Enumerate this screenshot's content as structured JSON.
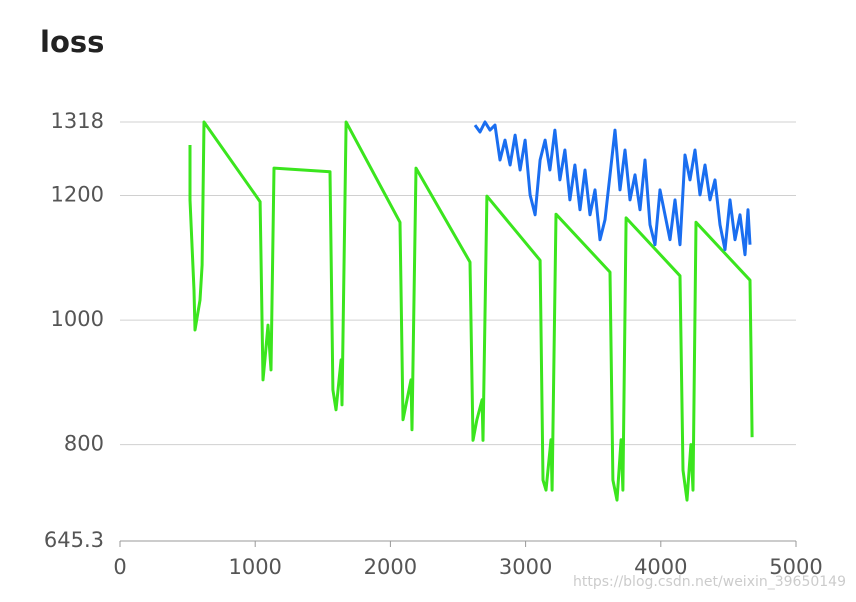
{
  "chart_data": {
    "type": "line",
    "title": "loss",
    "annotation": "https://blog.csdn.net/weixin_39650149",
    "xlim": [
      0,
      5000
    ],
    "xticks": [
      0,
      1000,
      2000,
      3000,
      4000,
      5000
    ],
    "ylim": [
      645.3,
      1318
    ],
    "yticks": [
      645.3,
      800,
      1000,
      1200,
      1318
    ],
    "grid": true,
    "series": [
      {
        "color": "#3be51e",
        "x": [
          518,
          518,
          547,
          555,
          592,
          607,
          621,
          1036,
          1058,
          1072,
          1095,
          1117,
          1139,
          1553,
          1575,
          1598,
          1635,
          1642,
          1672,
          2071,
          2093,
          2123,
          2152,
          2160,
          2189,
          2589,
          2611,
          2640,
          2678,
          2685,
          2714,
          3107,
          3129,
          3151,
          3188,
          3196,
          3225,
          3624,
          3646,
          3676,
          3706,
          3720,
          3743,
          4142,
          4164,
          4194,
          4223,
          4238,
          4260,
          4660,
          4667,
          4675
        ],
        "values": [
          1281,
          1193,
          1048,
          984,
          1032,
          1088,
          1318,
          1190,
          904,
          936,
          992,
          920,
          1244,
          1238,
          888,
          856,
          936,
          864,
          1318,
          1157,
          840,
          872,
          904,
          824,
          1244,
          1093,
          807,
          840,
          872,
          807,
          1199,
          1096,
          743,
          727,
          808,
          727,
          1170,
          1077,
          743,
          711,
          808,
          727,
          1164,
          1071,
          759,
          711,
          800,
          727,
          1157,
          1064,
          952,
          812
        ]
      },
      {
        "color": "#1a6ef0",
        "x": [
          2626,
          2663,
          2700,
          2737,
          2774,
          2811,
          2848,
          2885,
          2922,
          2959,
          2996,
          3033,
          3070,
          3107,
          3144,
          3180,
          3217,
          3254,
          3291,
          3328,
          3365,
          3402,
          3439,
          3476,
          3513,
          3550,
          3587,
          3624,
          3661,
          3698,
          3735,
          3772,
          3809,
          3846,
          3883,
          3920,
          3957,
          3994,
          4031,
          4068,
          4105,
          4142,
          4179,
          4216,
          4253,
          4290,
          4327,
          4364,
          4401,
          4438,
          4475,
          4512,
          4549,
          4586,
          4623,
          4645,
          4660
        ],
        "values": [
          1313,
          1302,
          1318,
          1305,
          1313,
          1257,
          1289,
          1249,
          1297,
          1241,
          1289,
          1201,
          1169,
          1257,
          1289,
          1241,
          1305,
          1225,
          1273,
          1193,
          1249,
          1177,
          1241,
          1169,
          1209,
          1129,
          1161,
          1233,
          1305,
          1209,
          1273,
          1193,
          1233,
          1177,
          1257,
          1153,
          1121,
          1209,
          1169,
          1129,
          1193,
          1121,
          1265,
          1225,
          1273,
          1201,
          1249,
          1193,
          1225,
          1153,
          1113,
          1193,
          1129,
          1169,
          1105,
          1177,
          1121
        ]
      }
    ]
  }
}
